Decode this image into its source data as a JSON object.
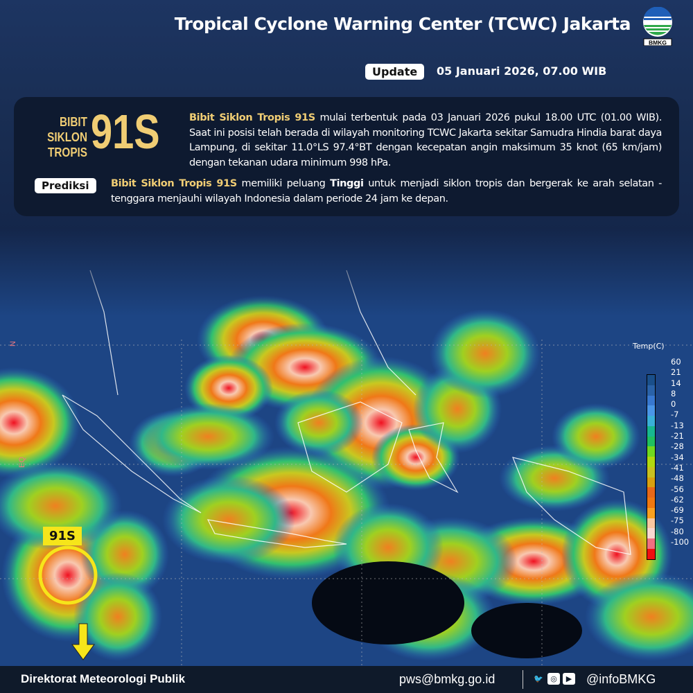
{
  "header": {
    "title": "Tropical Cyclone Warning Center (TCWC) Jakarta",
    "logo_text": "BMKG",
    "update_label": "Update",
    "update_date": "05 Januari 2026, 07.00 WIB"
  },
  "info": {
    "label": "BIBIT SIKLON TROPIS",
    "number": "91S",
    "desc_highlight": "Bibit Siklon Tropis 91S",
    "desc_rest": " mulai terbentuk pada 03 Januari 2026 pukul 18.00 UTC (01.00 WIB). Saat ini posisi telah berada di wilayah monitoring TCWC Jakarta sekitar Samudra Hindia barat daya Lampung, di sekitar 11.0°LS 97.4°BT dengan kecepatan angin maksimum 35 knot (65 km/jam) dengan tekanan udara minimum 998 hPa.",
    "prediksi_label": "Prediksi",
    "pred_highlight": "Bibit Siklon Tropis 91S",
    "pred_part1": " memiliki peluang ",
    "pred_bold": "Tinggi",
    "pred_part2": " untuk menjadi siklon tropis dan bergerak ke arah selatan - tenggara menjauhi wilayah Indonesia dalam periode 24 jam ke depan."
  },
  "map": {
    "legend_title": "Temp(C)",
    "legend_labels": [
      "60",
      "21",
      "14",
      "8",
      "0",
      "-7",
      "-13",
      "-21",
      "-28",
      "-34",
      "-41",
      "-48",
      "-56",
      "-62",
      "-69",
      "-75",
      "-80",
      "-100"
    ],
    "legend_colors": [
      "#1a4f8a",
      "#2a62a8",
      "#3878d0",
      "#4a96e8",
      "#3ab0d8",
      "#18b890",
      "#20c060",
      "#70d820",
      "#b0d810",
      "#c8c020",
      "#d8a010",
      "#e86818",
      "#f07810",
      "#f8a020",
      "#f8c8a0",
      "#f8d8d0",
      "#f07080",
      "#f01010"
    ],
    "lat_labels": [
      "N",
      "EQ"
    ],
    "storm_label": "91S",
    "colors": {
      "storm_marker": "#f6e51a"
    }
  },
  "footer": {
    "org": "Direktorat Meteorologi Publik",
    "email": "pws@bmkg.go.id",
    "handle": "@infoBMKG",
    "social_icons": [
      "twitter-icon",
      "instagram-icon",
      "youtube-icon"
    ]
  }
}
